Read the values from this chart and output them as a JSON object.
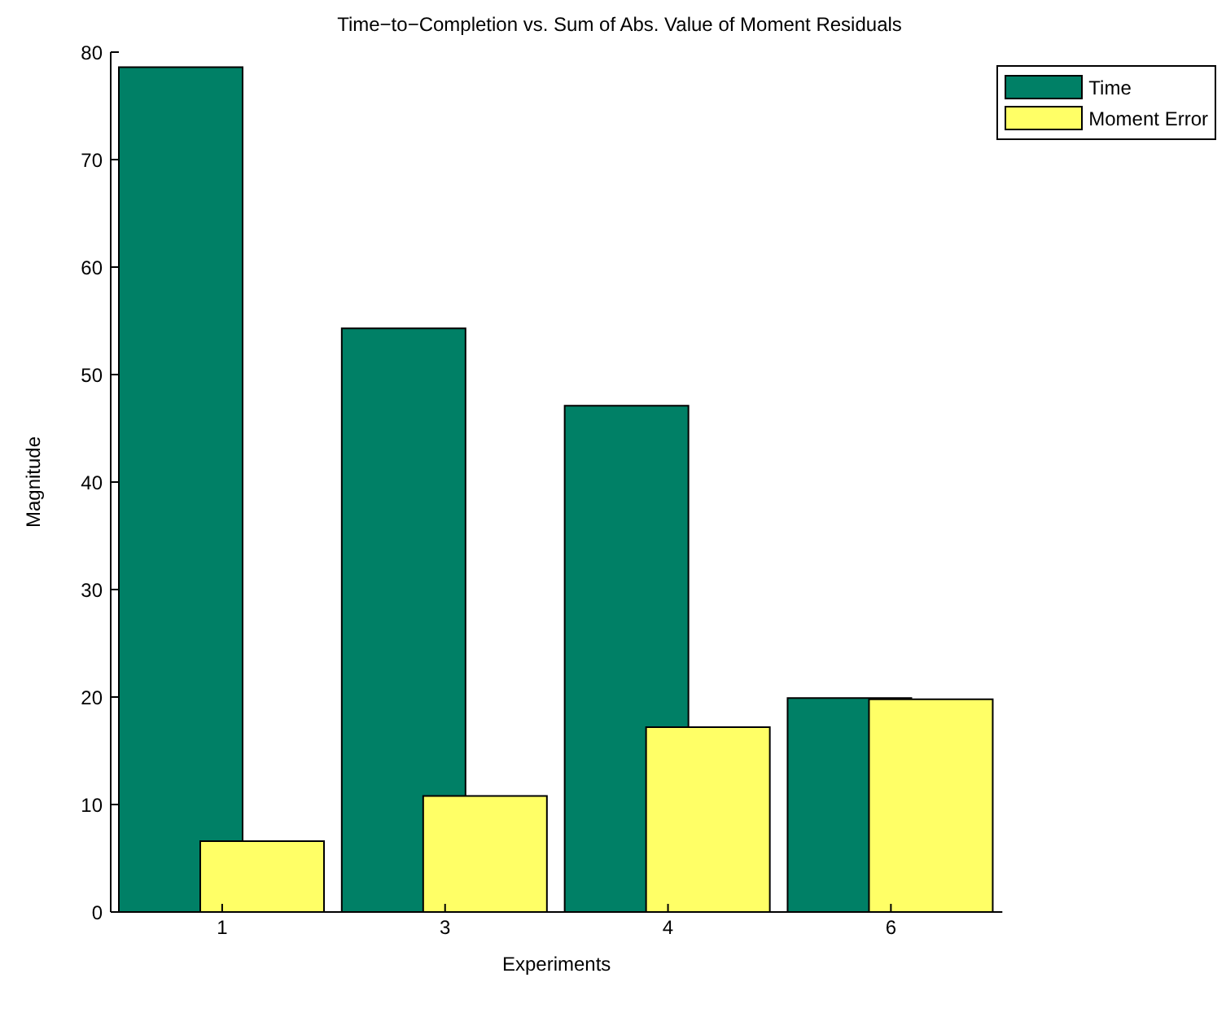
{
  "chart_data": {
    "type": "bar",
    "title": "Time−to−Completion vs. Sum of Abs. Value of Moment Residuals",
    "xlabel": "Experiments",
    "ylabel": "Magnitude",
    "categories": [
      "1",
      "3",
      "4",
      "6"
    ],
    "series": [
      {
        "name": "Time",
        "color": "#008066",
        "values": [
          78.6,
          54.3,
          47.1,
          19.9
        ]
      },
      {
        "name": "Moment Error",
        "color": "#ffff66",
        "values": [
          6.6,
          10.8,
          17.2,
          19.8
        ]
      }
    ],
    "ylim": [
      0,
      80
    ],
    "yticks": [
      0,
      10,
      20,
      30,
      40,
      50,
      60,
      70,
      80
    ],
    "grid": false,
    "legend": "top right"
  }
}
